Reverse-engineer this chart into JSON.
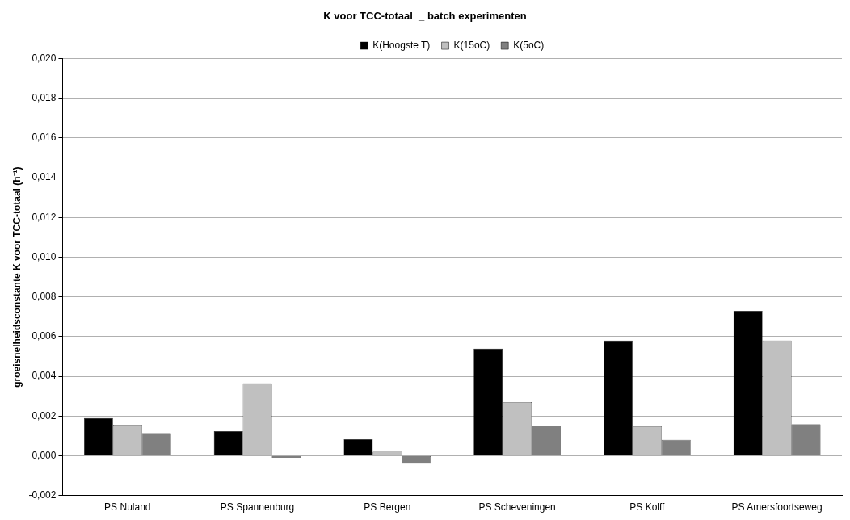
{
  "chart_data": {
    "type": "bar",
    "title": "K voor TCC-totaal  _ batch experimenten",
    "ylabel": "groeisnelheidsconstante K voor TCC-totaal (h⁻¹)",
    "categories": [
      "PS Nuland",
      "PS Spannenburg",
      "PS Bergen",
      "PS Scheveningen",
      "PS Kolff",
      "PS Amersfoortseweg"
    ],
    "series": [
      {
        "name": "K(Hoogste T)",
        "color": "#000000",
        "values": [
          0.0019,
          0.00124,
          0.00083,
          0.0054,
          0.0058,
          0.0073
        ]
      },
      {
        "name": "K(15oC)",
        "color": "#c0c0c0",
        "values": [
          0.00156,
          0.00365,
          0.0002,
          0.0027,
          0.00148,
          0.0058
        ]
      },
      {
        "name": "K(5oC)",
        "color": "#808080",
        "values": [
          0.00114,
          -0.0001,
          -0.0004,
          0.00152,
          0.0008,
          0.00158
        ]
      }
    ],
    "ylim": [
      -0.002,
      0.02
    ],
    "yticks": [
      {
        "value": -0.002,
        "label": "-0,002"
      },
      {
        "value": 0,
        "label": "0,000"
      },
      {
        "value": 0.002,
        "label": "0,002"
      },
      {
        "value": 0.004,
        "label": "0,004"
      },
      {
        "value": 0.006,
        "label": "0,006"
      },
      {
        "value": 0.008,
        "label": "0,008"
      },
      {
        "value": 0.01,
        "label": "0,010"
      },
      {
        "value": 0.012,
        "label": "0,012"
      },
      {
        "value": 0.014,
        "label": "0,014"
      },
      {
        "value": 0.016,
        "label": "0,016"
      },
      {
        "value": 0.018,
        "label": "0,018"
      },
      {
        "value": 0.02,
        "label": "0,020"
      }
    ],
    "grid": "y",
    "legend": "top"
  }
}
